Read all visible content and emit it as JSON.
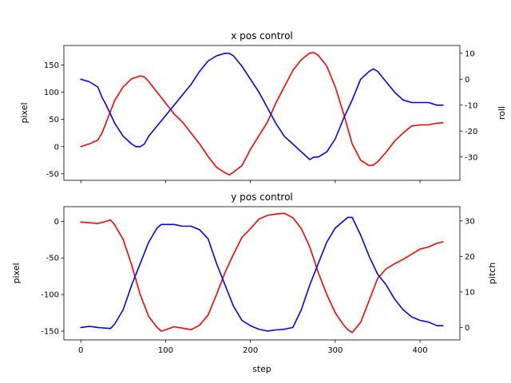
{
  "chart_data": [
    {
      "type": "line",
      "title": "x pos control",
      "xlabel": "",
      "ylabel": "pixel",
      "y2label": "roll",
      "xlim": [
        -20,
        447
      ],
      "ylim": [
        -62,
        186
      ],
      "y2lim": [
        -39,
        13
      ],
      "xticks": [
        0,
        100,
        200,
        300,
        400
      ],
      "show_xtick_labels": false,
      "yticks": [
        -50,
        0,
        50,
        100,
        150
      ],
      "y2ticks": [
        -30,
        -20,
        -10,
        0,
        10
      ],
      "series": [
        {
          "name": "pixel",
          "axis": "left",
          "color": "#ff0000",
          "x": [
            0,
            10,
            20,
            25,
            30,
            40,
            50,
            60,
            70,
            75,
            80,
            90,
            100,
            110,
            120,
            130,
            140,
            150,
            160,
            170,
            175,
            180,
            190,
            200,
            210,
            220,
            230,
            240,
            250,
            260,
            270,
            275,
            280,
            290,
            300,
            310,
            320,
            330,
            340,
            345,
            350,
            360,
            370,
            380,
            390,
            400,
            410,
            420,
            427
          ],
          "y": [
            0,
            5,
            12,
            25,
            45,
            85,
            110,
            125,
            130,
            128,
            120,
            100,
            80,
            60,
            45,
            25,
            5,
            -18,
            -38,
            -48,
            -52,
            -47,
            -35,
            -5,
            20,
            45,
            80,
            110,
            140,
            160,
            172,
            173,
            168,
            148,
            110,
            60,
            5,
            -25,
            -35,
            -34,
            -28,
            -10,
            10,
            25,
            38,
            40,
            40,
            43,
            44
          ]
        },
        {
          "name": "roll",
          "axis": "right",
          "color": "#0000ff",
          "x": [
            0,
            10,
            20,
            25,
            30,
            40,
            50,
            60,
            65,
            70,
            75,
            80,
            90,
            100,
            110,
            120,
            130,
            140,
            150,
            160,
            170,
            175,
            180,
            190,
            200,
            210,
            220,
            230,
            240,
            250,
            260,
            270,
            275,
            280,
            290,
            300,
            310,
            320,
            330,
            340,
            345,
            350,
            360,
            370,
            380,
            390,
            400,
            410,
            420,
            427
          ],
          "y": [
            0,
            -1,
            -3,
            -7,
            -10,
            -17,
            -22,
            -25,
            -26,
            -26,
            -25,
            -22,
            -18,
            -14,
            -10,
            -6,
            -2,
            3,
            7,
            9,
            10,
            10,
            9,
            5,
            0,
            -5,
            -11,
            -17,
            -22,
            -25,
            -28,
            -31,
            -30,
            -30,
            -28,
            -23,
            -15,
            -8,
            0,
            3,
            4,
            3,
            -1,
            -5,
            -8,
            -9,
            -9,
            -9,
            -10,
            -10
          ]
        }
      ]
    },
    {
      "type": "line",
      "title": "y pos control",
      "xlabel": "step",
      "ylabel": "pixel",
      "y2label": "pitch",
      "xlim": [
        -20,
        447
      ],
      "ylim": [
        -162,
        20
      ],
      "y2lim": [
        -3.5,
        34
      ],
      "xticks": [
        0,
        100,
        200,
        300,
        400
      ],
      "show_xtick_labels": true,
      "yticks": [
        -150,
        -100,
        -50,
        0
      ],
      "y2ticks": [
        0,
        10,
        20,
        30
      ],
      "series": [
        {
          "name": "pixel",
          "axis": "left",
          "color": "#ff0000",
          "x": [
            0,
            10,
            20,
            30,
            35,
            40,
            50,
            60,
            70,
            80,
            90,
            95,
            100,
            110,
            120,
            130,
            140,
            150,
            160,
            170,
            180,
            190,
            200,
            210,
            220,
            230,
            240,
            250,
            260,
            270,
            280,
            290,
            300,
            310,
            315,
            320,
            330,
            340,
            350,
            360,
            370,
            380,
            390,
            400,
            410,
            420,
            427
          ],
          "y": [
            -1,
            -2,
            -3,
            0,
            2,
            -5,
            -25,
            -60,
            -100,
            -130,
            -145,
            -150,
            -148,
            -144,
            -146,
            -148,
            -142,
            -128,
            -100,
            -70,
            -45,
            -22,
            -10,
            3,
            8,
            10,
            11,
            5,
            -10,
            -35,
            -70,
            -100,
            -125,
            -142,
            -148,
            -152,
            -138,
            -108,
            -78,
            -65,
            -58,
            -52,
            -45,
            -38,
            -35,
            -30,
            -28
          ]
        },
        {
          "name": "pitch",
          "axis": "right",
          "color": "#0000ff",
          "x": [
            0,
            10,
            20,
            30,
            35,
            40,
            50,
            60,
            70,
            80,
            90,
            95,
            100,
            110,
            120,
            130,
            140,
            150,
            160,
            170,
            180,
            190,
            200,
            210,
            220,
            230,
            240,
            250,
            260,
            270,
            280,
            290,
            300,
            310,
            315,
            320,
            330,
            340,
            350,
            360,
            370,
            380,
            390,
            400,
            410,
            420,
            427
          ],
          "y": [
            0,
            0.3,
            0,
            -0.2,
            -0.3,
            1,
            5,
            12,
            18,
            24,
            28,
            29,
            29,
            29,
            28.5,
            28.5,
            27.5,
            25,
            18,
            12,
            6,
            2,
            0.5,
            -0.5,
            -1,
            -0.7,
            -0.5,
            0,
            5,
            12,
            18,
            24,
            28,
            30,
            31,
            31,
            26,
            20,
            15,
            12,
            8,
            5,
            3,
            2,
            1.5,
            0.5,
            0.5
          ]
        }
      ]
    }
  ]
}
